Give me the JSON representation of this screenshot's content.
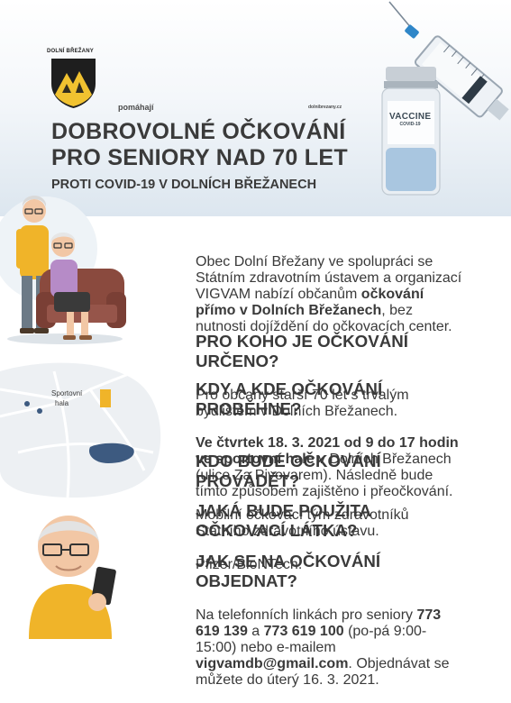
{
  "header": {
    "municipality": "DOLNÍ BŘEŽANY",
    "tagline": "pomáhají",
    "website": "dolnibrezany.cz",
    "title_line1": "DOBROVOLNÉ OČKOVÁNÍ",
    "title_line2": "PRO SENIORY NAD 70 LET",
    "subtitle": "PROTI COVID-19 V DOLNÍCH BŘEŽANECH",
    "vial_label_1": "VACCINE",
    "vial_label_2": "COVID-19"
  },
  "map": {
    "place_label_1": "Sportovní",
    "place_label_2": "hala"
  },
  "intro": {
    "part1": "Obec Dolní Břežany ve spolupráci se Státním zdravotním ústavem a organizací VIGVAM nabízí občanům ",
    "bold": "očkování přímo v Dolních Břežanech",
    "part2": ", bez nutnosti dojíždění do očkovacích center."
  },
  "sections": [
    {
      "heading": "PRO KOHO JE OČKOVÁNÍ URČENO?",
      "text": "Pro občany starší 70 let s trvalým bydlištěm v Dolních Břežanech."
    },
    {
      "heading": "KDY A KDE OČKOVÁNÍ PROBĚHNE?",
      "bold": "Ve čtvrtek 18. 3. 2021 od 9 do 17 hodin ve sportovní hale",
      "text": " v Dolních Břežanech (ulice Za Pivovarem). Následně bude tímto způsobem zajištěno i přeočkování."
    },
    {
      "heading": "KDO BUDE OČKOVÁNÍ PROVÁDĚT?",
      "text": "Mobilní očkovací tým zdravotníků Státního zdravotního ústavu."
    },
    {
      "heading": "JAKÁ BUDE POUŽITA OČKOVACÍ LÁTKA?",
      "text": "Pfizer/BioNTech."
    },
    {
      "heading": "JAK SE NA OČKOVÁNÍ OBJEDNAT?",
      "t1": "Na telefonních linkách pro seniory ",
      "phone1": "773 619 139",
      "t2": " a ",
      "phone2": "773 619 100",
      "t3": " (po-pá 9:00-15:00) nebo e-mailem ",
      "email": "vigvamdb@gmail.com",
      "t4": ". Objednávat se můžete do úterý 16. 3. 2021."
    }
  ],
  "colors": {
    "heading": "#3a3a3a",
    "accent_yellow": "#f0b429",
    "map_blue": "#3d5a80",
    "hero_bottom": "#dce6ef"
  }
}
